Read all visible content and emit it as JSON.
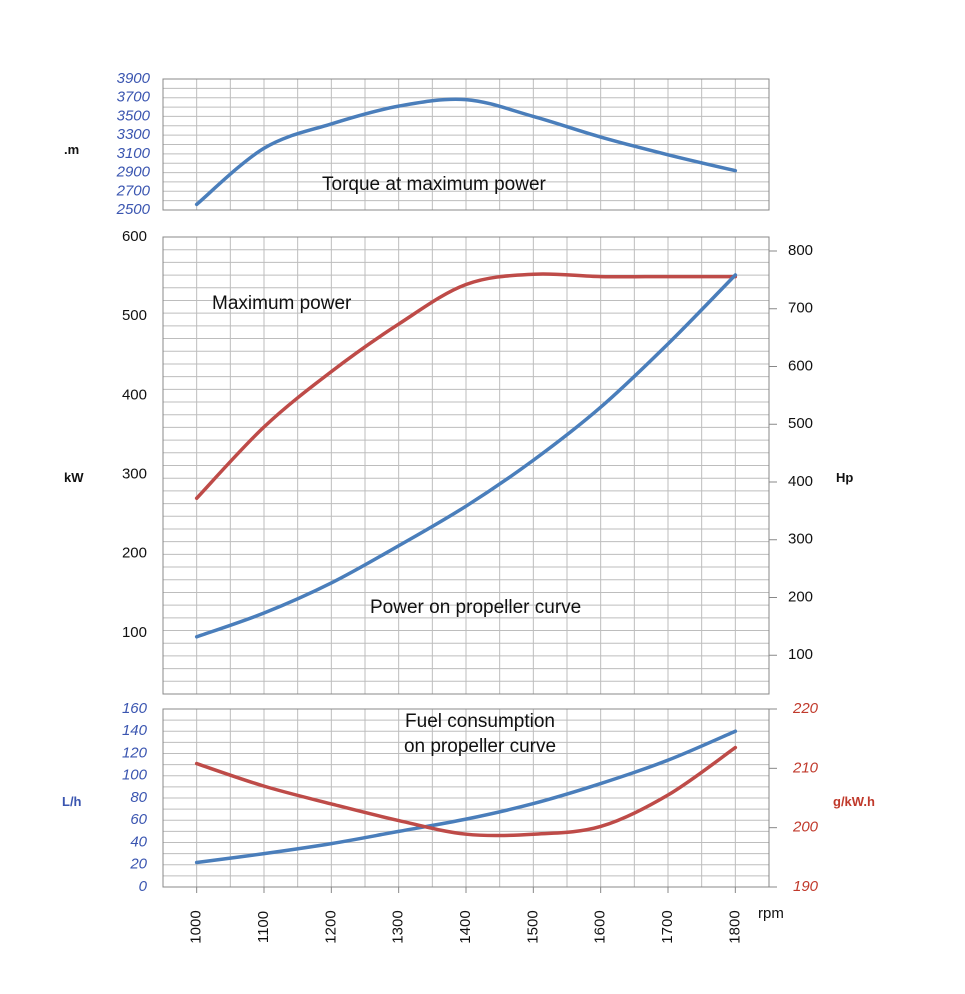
{
  "colors": {
    "blue": "#4a7ebb",
    "red": "#be4b48",
    "blue_text": "#3a55b0",
    "red_text": "#c0392b"
  },
  "chart_data": [
    {
      "type": "line",
      "panel": "torque",
      "ylabel": ".m",
      "ylim": [
        2500,
        3900
      ],
      "yticks": [
        "3900",
        "3700",
        "3500",
        "3300",
        "3100",
        "2900",
        "2700",
        "2500"
      ],
      "x": [
        1000,
        1100,
        1200,
        1300,
        1400,
        1500,
        1600,
        1700,
        1800
      ],
      "grid": true,
      "annotation": "Torque at maximum power",
      "series": [
        {
          "color": "blue",
          "values": [
            2560,
            3160,
            3420,
            3610,
            3680,
            3500,
            3280,
            3090,
            2920
          ]
        }
      ]
    },
    {
      "type": "line",
      "panel": "power",
      "ylabel": "kW",
      "ylim": [
        0,
        600
      ],
      "yticks": [
        "600",
        "500",
        "400",
        "300",
        "200",
        "100"
      ],
      "y2label": "Hp",
      "y2ticks": [
        "800",
        "700",
        "600",
        "500",
        "400",
        "300",
        "200",
        "100"
      ],
      "x": [
        1000,
        1100,
        1200,
        1300,
        1400,
        1500,
        1600,
        1700,
        1800
      ],
      "grid": true,
      "annotations": [
        "Maximum power",
        "Power on propeller curve"
      ],
      "series": [
        {
          "color": "red",
          "values": [
            270,
            360,
            430,
            490,
            540,
            553,
            550,
            550,
            550
          ]
        },
        {
          "color": "blue",
          "values": [
            95,
            125,
            163,
            210,
            260,
            318,
            385,
            465,
            552
          ]
        }
      ]
    },
    {
      "type": "line",
      "panel": "fuel",
      "ylabel": "L/h",
      "ylim": [
        0,
        160
      ],
      "yticks": [
        "160",
        "140",
        "120",
        "100",
        "80",
        "60",
        "40",
        "20",
        "0"
      ],
      "y2label": "g/kW.h",
      "y2lim": [
        190,
        220
      ],
      "y2ticks": [
        "220",
        "210",
        "200",
        "190"
      ],
      "x": [
        1000,
        1100,
        1200,
        1300,
        1400,
        1500,
        1600,
        1700,
        1800
      ],
      "xticks": [
        "1000",
        "1100",
        "1200",
        "1300",
        "1400",
        "1500",
        "1600",
        "1700",
        "1800"
      ],
      "xlabel": "rpm",
      "grid": true,
      "annotation": [
        "Fuel consumption",
        "on propeller curve"
      ],
      "series": [
        {
          "color": "blue",
          "axis": "left",
          "values": [
            22,
            30,
            39,
            50,
            61,
            75,
            93,
            114,
            140
          ]
        },
        {
          "color": "red",
          "axis": "right",
          "values": [
            210.8,
            207.0,
            204.0,
            201.2,
            198.9,
            198.9,
            200.2,
            205.5,
            213.5
          ]
        }
      ]
    }
  ]
}
